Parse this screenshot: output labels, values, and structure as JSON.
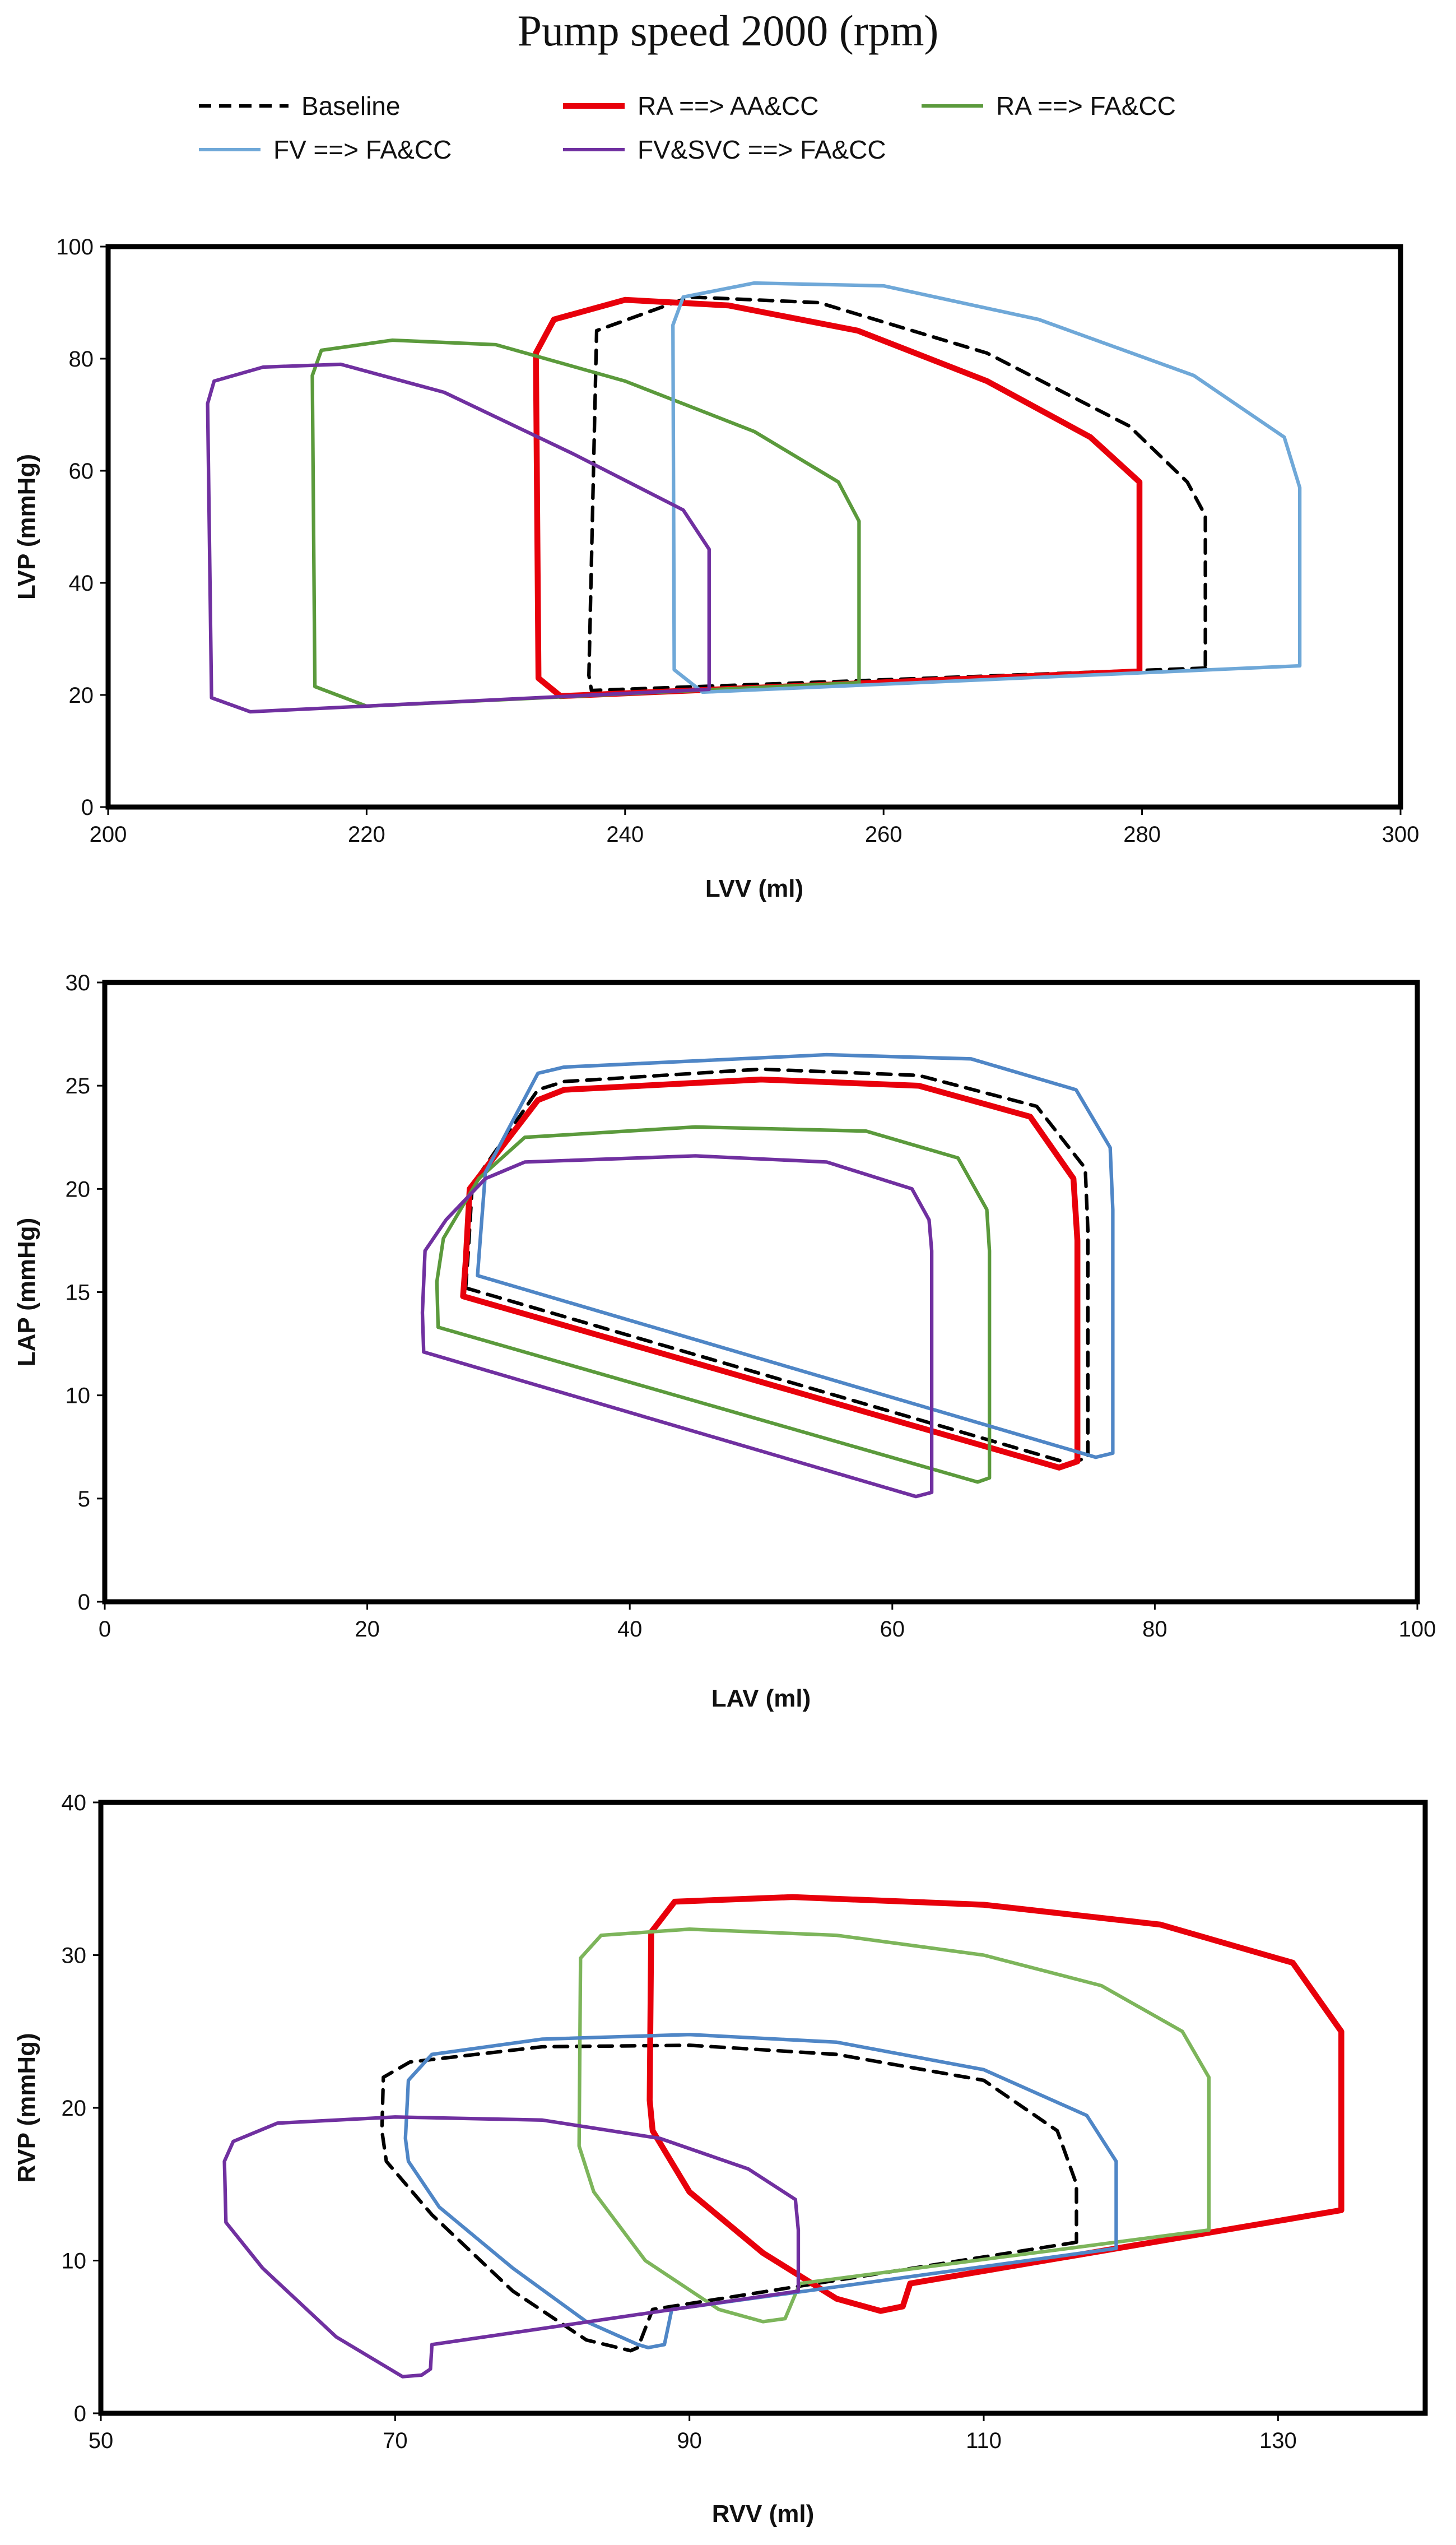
{
  "title": "Pump speed 2000 (rpm)",
  "legend": [
    {
      "name": "Baseline",
      "color": "#000000",
      "dash": true,
      "width": 3
    },
    {
      "name": "RA ==> AA&CC",
      "color": "#e8000b",
      "dash": false,
      "width": 5
    },
    {
      "name": "RA ==> FA&CC",
      "color": "#5b9a3c",
      "dash": false,
      "width": 3
    },
    {
      "name": "FV ==> FA&CC",
      "color": "#6fa8d8",
      "dash": false,
      "width": 3
    },
    {
      "name": "FV&SVC ==> FA&CC",
      "color": "#7030a0",
      "dash": false,
      "width": 3
    }
  ],
  "chart_data": [
    {
      "type": "line",
      "title": "LV pressure-volume loops",
      "xlabel": "LVV (ml)",
      "ylabel": "LVP (mmHg)",
      "xlim": [
        200,
        300
      ],
      "ylim": [
        0,
        100
      ],
      "xticks": [
        200,
        220,
        240,
        260,
        280,
        300
      ],
      "yticks": [
        0,
        20,
        40,
        60,
        80,
        100
      ],
      "series": [
        {
          "name": "Baseline",
          "color": "#000000",
          "dash": true,
          "width": 3,
          "x": [
            284.9,
            237.4,
            237.2,
            237.8,
            245,
            255,
            268,
            279,
            283.5,
            284.9,
            284.9
          ],
          "y": [
            24.8,
            20.8,
            23.5,
            85,
            91,
            90,
            81,
            68,
            58,
            52,
            24.8
          ]
        },
        {
          "name": "RA ==> AA&CC",
          "color": "#e8000b",
          "dash": false,
          "width": 5,
          "x": [
            279.8,
            235,
            233.3,
            233.1,
            234.5,
            240,
            248,
            258,
            268,
            276,
            279.8,
            279.8
          ],
          "y": [
            24.2,
            19.8,
            23,
            81,
            87,
            90.5,
            89.5,
            85,
            76,
            66,
            58,
            24.2
          ]
        },
        {
          "name": "RA ==> FA&CC",
          "color": "#5b9a3c",
          "dash": false,
          "width": 3,
          "x": [
            258.1,
            220,
            216,
            215.8,
            216.5,
            222,
            230,
            240,
            250,
            256.5,
            258.1,
            258.1
          ],
          "y": [
            22.2,
            18,
            21.5,
            77,
            81.5,
            83.3,
            82.5,
            76,
            67,
            58,
            51,
            22.2
          ]
        },
        {
          "name": "FV ==> FA&CC",
          "color": "#6fa8d8",
          "dash": false,
          "width": 3,
          "x": [
            292.2,
            246,
            243.8,
            243.7,
            244.5,
            250,
            260,
            272,
            284,
            291,
            292.2,
            292.2
          ],
          "y": [
            25.2,
            20.5,
            24.5,
            86,
            91,
            93.5,
            93,
            87,
            77,
            66,
            57,
            25.2
          ]
        },
        {
          "name": "FV&SVC ==> FA&CC",
          "color": "#7030a0",
          "dash": false,
          "width": 3,
          "x": [
            246.5,
            211,
            208,
            207.7,
            208.2,
            212,
            218,
            226,
            236,
            244.5,
            246.5,
            246.5
          ],
          "y": [
            21,
            17,
            19.5,
            72,
            76,
            78.5,
            79,
            74,
            63,
            53,
            46,
            21
          ]
        }
      ]
    },
    {
      "type": "line",
      "title": "LA pressure-volume loops",
      "xlabel": "LAV (ml)",
      "ylabel": "LAP (mmHg)",
      "xlim": [
        0,
        100
      ],
      "ylim": [
        0,
        30
      ],
      "xticks": [
        0,
        20,
        40,
        60,
        80,
        100
      ],
      "yticks": [
        0,
        5,
        10,
        15,
        20,
        25,
        30
      ],
      "series": [
        {
          "name": "Baseline",
          "color": "#000000",
          "dash": true,
          "width": 3,
          "x": [
            27.5,
            27.7,
            28,
            33,
            35,
            50,
            62,
            71,
            74.7,
            74.9,
            74.9,
            73.5,
            27.5
          ],
          "y": [
            15.2,
            17,
            20.2,
            24.8,
            25.2,
            25.8,
            25.5,
            24,
            21,
            18,
            7,
            6.7,
            15.2
          ]
        },
        {
          "name": "RA ==> AA&CC",
          "color": "#e8000b",
          "dash": false,
          "width": 5,
          "x": [
            27.3,
            27.5,
            27.8,
            33,
            35,
            50,
            62,
            70.5,
            73.8,
            74.1,
            74.1,
            72.7,
            27.3
          ],
          "y": [
            14.8,
            16.5,
            20,
            24.3,
            24.8,
            25.3,
            25,
            23.5,
            20.5,
            17.5,
            6.8,
            6.5,
            14.8
          ]
        },
        {
          "name": "RA ==> FA&CC",
          "color": "#5b9a3c",
          "dash": false,
          "width": 3,
          "x": [
            25.4,
            25.3,
            25.8,
            28.5,
            32,
            45,
            58,
            65,
            67.2,
            67.4,
            67.4,
            66.5,
            25.4
          ],
          "y": [
            13.3,
            15.5,
            17.6,
            20.5,
            22.5,
            23,
            22.8,
            21.5,
            19,
            17,
            6,
            5.8,
            13.3
          ]
        },
        {
          "name": "FV ==> FA&CC",
          "color": "#4f86c6",
          "dash": false,
          "width": 3,
          "x": [
            28.4,
            28.6,
            29,
            33,
            35,
            55,
            66,
            74,
            76.6,
            76.8,
            76.8,
            75.5,
            28.4
          ],
          "y": [
            15.8,
            17.5,
            20.8,
            25.6,
            25.9,
            26.5,
            26.3,
            24.8,
            22,
            19,
            7.2,
            7,
            15.8
          ]
        },
        {
          "name": "FV&SVC ==> FA&CC",
          "color": "#7030a0",
          "dash": false,
          "width": 3,
          "x": [
            24.3,
            24.2,
            24.4,
            26,
            29,
            32,
            45,
            55,
            61.5,
            62.8,
            63,
            63,
            61.8,
            24.3
          ],
          "y": [
            12.1,
            14,
            17,
            18.5,
            20.5,
            21.3,
            21.6,
            21.3,
            20,
            18.5,
            17,
            5.3,
            5.1,
            12.1
          ]
        }
      ]
    },
    {
      "type": "line",
      "title": "RV pressure-volume loops",
      "xlabel": "RVV (ml)",
      "ylabel": "RVP (mmHg)",
      "xlim": [
        50,
        140
      ],
      "ylim": [
        0,
        40
      ],
      "xticks": [
        50,
        70,
        90,
        110,
        130
      ],
      "yticks": [
        0,
        10,
        20,
        30,
        40
      ],
      "series": [
        {
          "name": "Baseline",
          "color": "#000000",
          "dash": true,
          "width": 3,
          "x": [
            116.3,
            87.5,
            86.5,
            86,
            83,
            78,
            72.5,
            69.4,
            69.1,
            69.2,
            71,
            80,
            90,
            100,
            110,
            115,
            116.3,
            116.3
          ],
          "y": [
            11.2,
            6.8,
            4.3,
            4.1,
            4.8,
            8,
            13,
            16.5,
            18.5,
            22,
            23,
            24,
            24.1,
            23.5,
            21.8,
            18.5,
            15,
            11.2
          ]
        },
        {
          "name": "RA ==> AA&CC",
          "color": "#e8000b",
          "dash": false,
          "width": 5,
          "x": [
            134.3,
            105,
            104.5,
            103,
            100,
            95,
            90,
            87.5,
            87.3,
            87.4,
            89,
            97,
            110,
            122,
            131,
            134.3,
            134.3
          ],
          "y": [
            13.3,
            8.5,
            7,
            6.7,
            7.5,
            10.5,
            14.5,
            18.5,
            20.5,
            31.5,
            33.5,
            33.8,
            33.3,
            32,
            29.5,
            25,
            13.3
          ]
        },
        {
          "name": "RA ==> FA&CC",
          "color": "#7db55b",
          "dash": false,
          "width": 3,
          "x": [
            125.3,
            97.5,
            96.5,
            95,
            92,
            87,
            83.5,
            82.5,
            82.6,
            84,
            90,
            100,
            110,
            118,
            123.5,
            125.3,
            125.3
          ],
          "y": [
            12,
            8.5,
            6.2,
            6,
            6.8,
            10,
            14.5,
            17.5,
            29.8,
            31.3,
            31.7,
            31.3,
            30,
            28,
            25,
            22,
            12
          ]
        },
        {
          "name": "FV ==> FA&CC",
          "color": "#4f86c6",
          "dash": false,
          "width": 3,
          "x": [
            119,
            88.8,
            88.3,
            87.2,
            86.5,
            83,
            78,
            73,
            70.9,
            70.7,
            70.9,
            72.5,
            80,
            90,
            100,
            110,
            117,
            119,
            119
          ],
          "y": [
            10.8,
            6.8,
            4.5,
            4.3,
            4.5,
            6,
            9.5,
            13.5,
            16.5,
            18,
            21.8,
            23.5,
            24.5,
            24.8,
            24.3,
            22.5,
            19.5,
            16.5,
            10.8
          ]
        },
        {
          "name": "FV&SVC ==> FA&CC",
          "color": "#7030a0",
          "dash": false,
          "width": 3,
          "x": [
            97.4,
            72.5,
            72.4,
            71.8,
            70.5,
            66,
            61,
            58.5,
            58.4,
            59,
            62,
            70,
            80,
            88,
            94,
            97.2,
            97.4,
            97.4
          ],
          "y": [
            8,
            4.5,
            2.9,
            2.5,
            2.4,
            5,
            9.5,
            12.5,
            16.5,
            17.8,
            19,
            19.4,
            19.2,
            18,
            16,
            14,
            12,
            8
          ]
        }
      ]
    }
  ]
}
